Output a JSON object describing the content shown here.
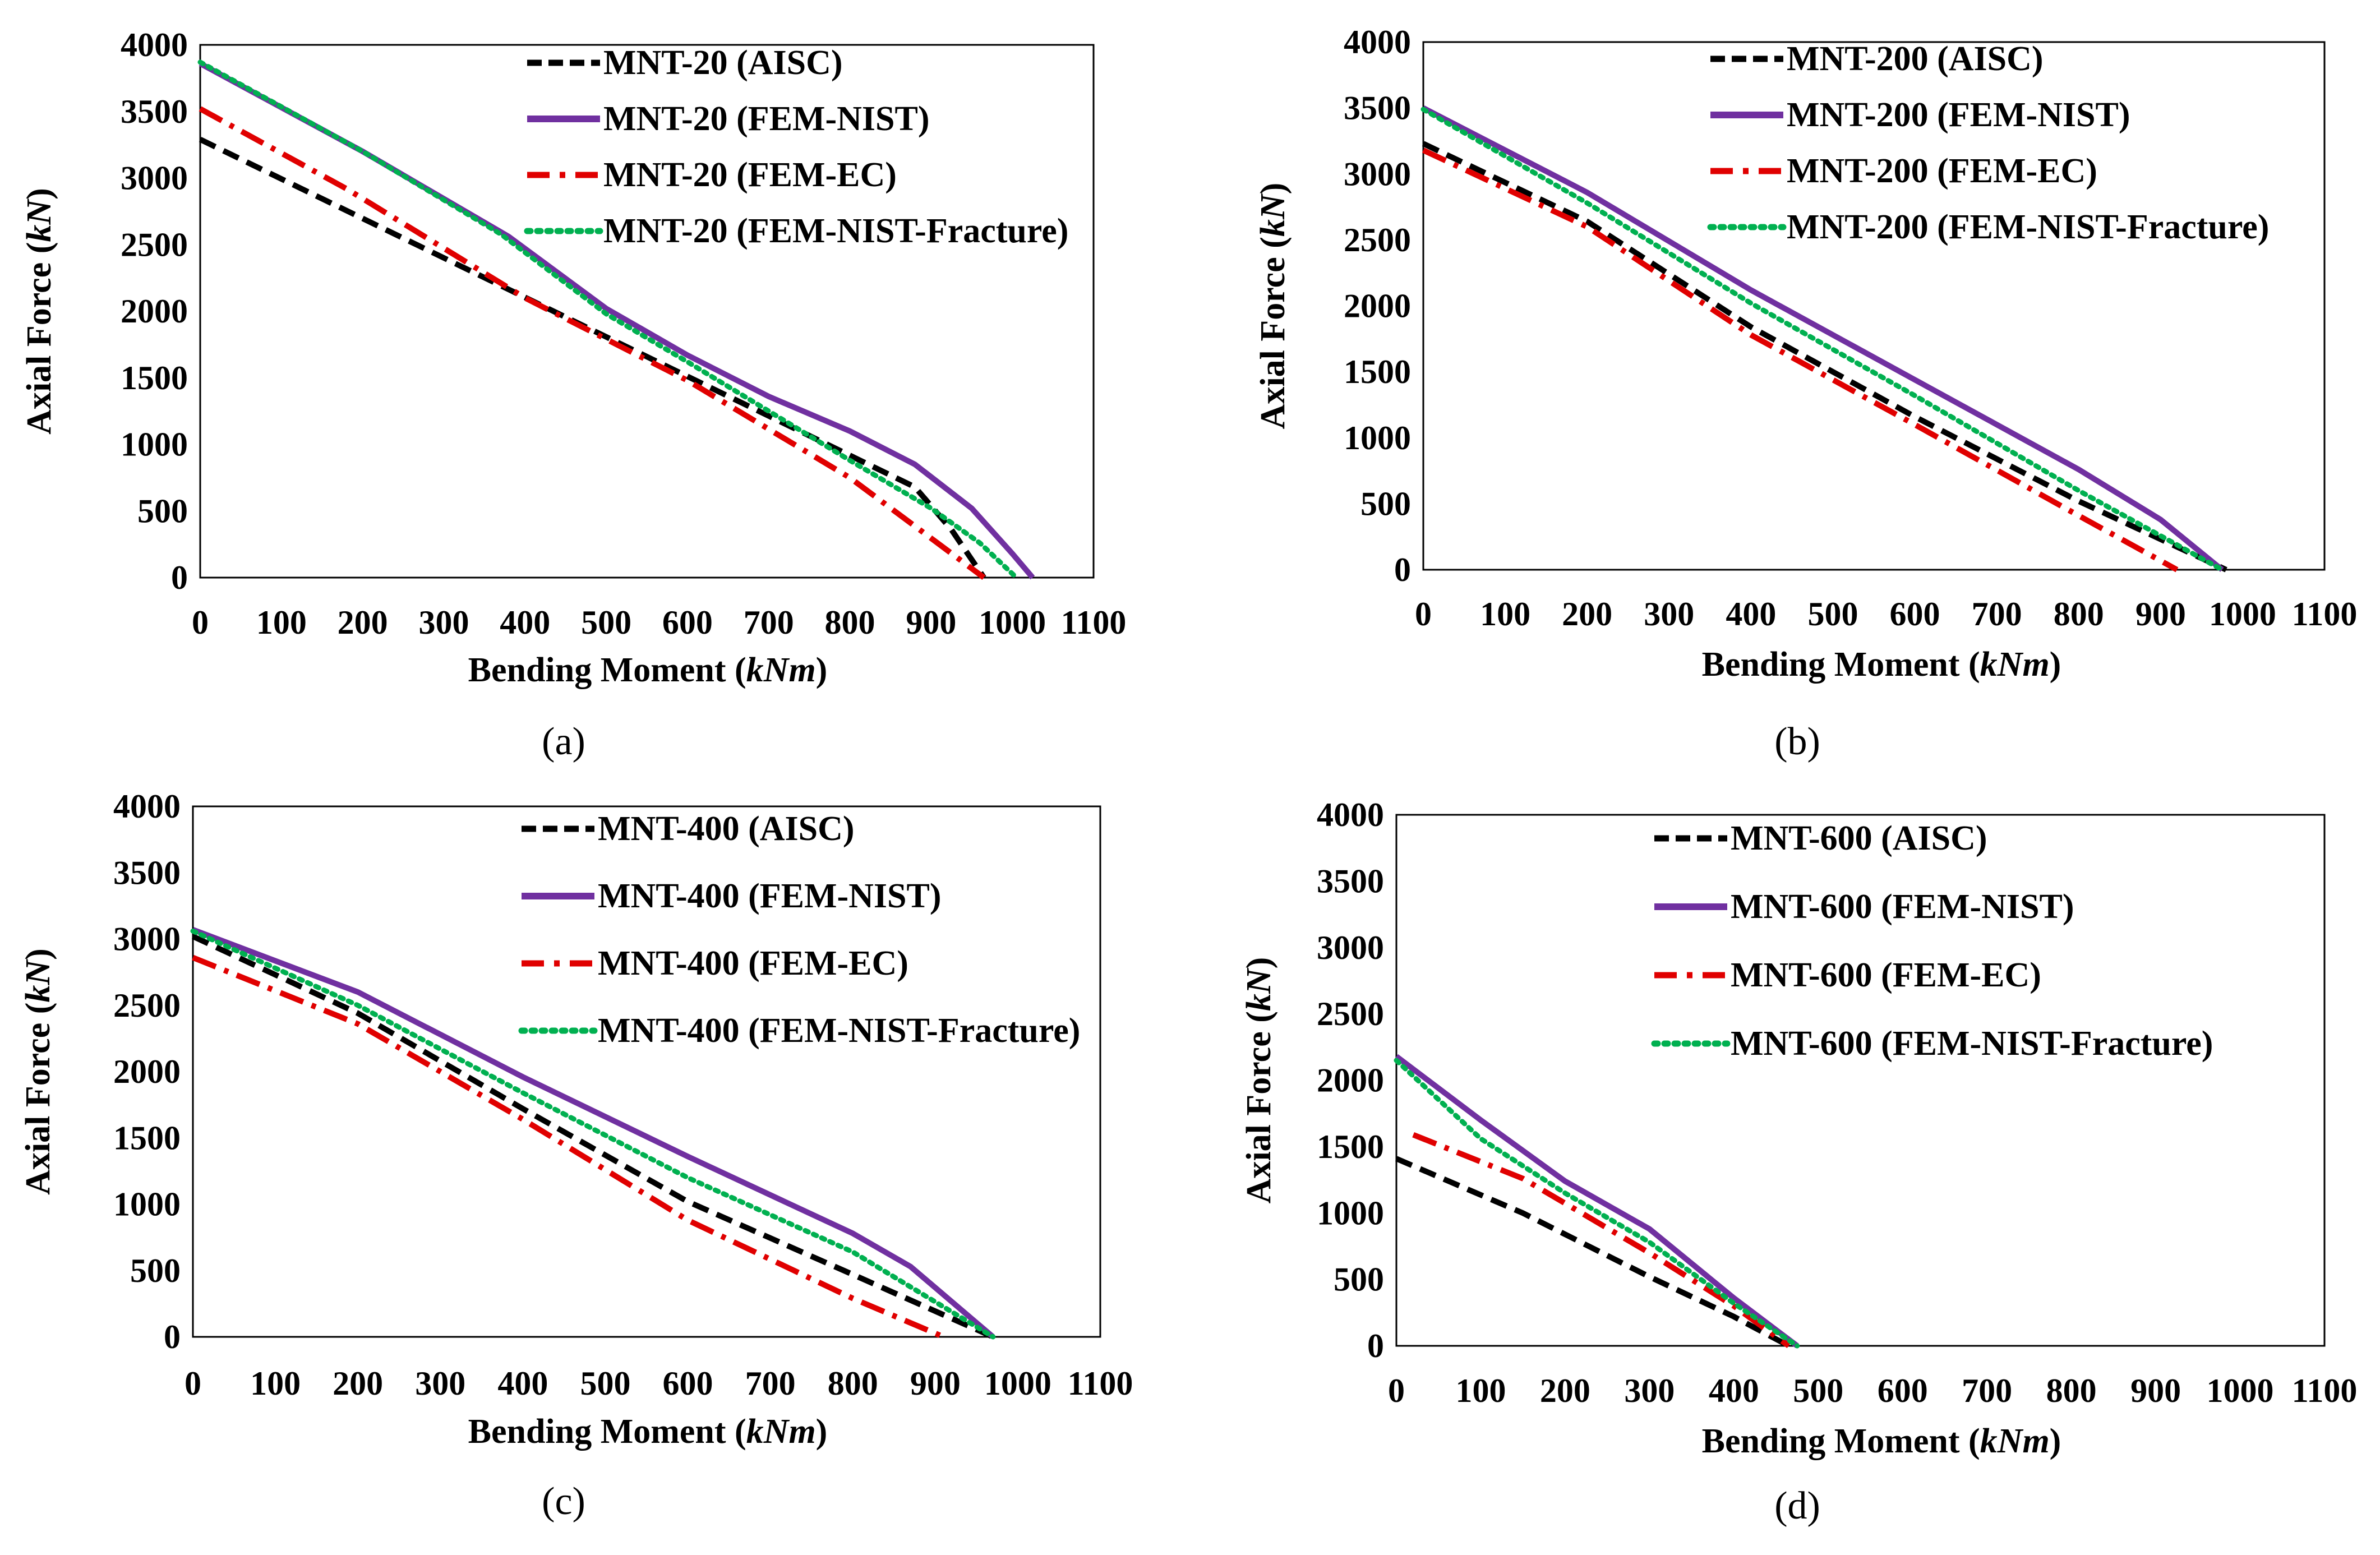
{
  "figure": {
    "style": {
      "colors": {
        "aisc": "#000000",
        "fem_nist": "#7030a0",
        "fem_ec": "#e00000",
        "fem_nist_fracture": "#00b050"
      },
      "dash": {
        "aisc": "30,16",
        "fem_nist": "",
        "fem_ec": "44,16,8,16",
        "fem_nist_fracture": "6,10"
      }
    }
  },
  "chart_data": [
    {
      "panel": "(a)",
      "type": "line",
      "xlabel": "Bending Moment (",
      "xlabel_unit": "kNm",
      "xlabel_close": ")",
      "ylabel": "Axial Force (",
      "ylabel_unit": "kN",
      "ylabel_close": ")",
      "xlim": [
        0,
        1100
      ],
      "ylim": [
        0,
        4000
      ],
      "xticks": [
        "0",
        "100",
        "200",
        "300",
        "400",
        "500",
        "600",
        "700",
        "800",
        "900",
        "1000",
        "1100"
      ],
      "yticks": [
        "0",
        "500",
        "1000",
        "1500",
        "2000",
        "2500",
        "3000",
        "3500",
        "4000"
      ],
      "series": [
        {
          "key": "aisc",
          "name": "MNT-20 (AISC)",
          "points": [
            [
              0,
              3290
            ],
            [
              880,
              680
            ],
            [
              925,
              360
            ],
            [
              965,
              0
            ]
          ]
        },
        {
          "key": "fem_nist",
          "name": "MNT-20 (FEM-NIST)",
          "points": [
            [
              0,
              3860
            ],
            [
              200,
              3200
            ],
            [
              380,
              2560
            ],
            [
              500,
              2020
            ],
            [
              600,
              1670
            ],
            [
              700,
              1360
            ],
            [
              800,
              1100
            ],
            [
              880,
              850
            ],
            [
              950,
              520
            ],
            [
              1000,
              180
            ],
            [
              1025,
              0
            ]
          ]
        },
        {
          "key": "fem_ec",
          "name": "MNT-20 (FEM-EC)",
          "points": [
            [
              0,
              3520
            ],
            [
              180,
              2920
            ],
            [
              400,
              2100
            ],
            [
              600,
              1480
            ],
            [
              800,
              750
            ],
            [
              965,
              0
            ]
          ]
        },
        {
          "key": "fem_nist_fracture",
          "name": "MNT-20 (FEM-NIST-Fracture)",
          "points": [
            [
              0,
              3870
            ],
            [
              200,
              3200
            ],
            [
              370,
              2580
            ],
            [
              500,
              1980
            ],
            [
              600,
              1620
            ],
            [
              700,
              1250
            ],
            [
              800,
              880
            ],
            [
              900,
              520
            ],
            [
              960,
              260
            ],
            [
              1005,
              0
            ]
          ]
        }
      ]
    },
    {
      "panel": "(b)",
      "type": "line",
      "xlabel": "Bending Moment (",
      "xlabel_unit": "kNm",
      "xlabel_close": ")",
      "ylabel": "Axial Force (",
      "ylabel_unit": "kN",
      "ylabel_close": ")",
      "xlim": [
        0,
        1100
      ],
      "ylim": [
        0,
        4000
      ],
      "xticks": [
        "0",
        "100",
        "200",
        "300",
        "400",
        "500",
        "600",
        "700",
        "800",
        "900",
        "1000",
        "1100"
      ],
      "yticks": [
        "0",
        "500",
        "1000",
        "1500",
        "2000",
        "2500",
        "3000",
        "3500",
        "4000"
      ],
      "series": [
        {
          "key": "aisc",
          "name": "MNT-200 (AISC)",
          "points": [
            [
              0,
              3230
            ],
            [
              200,
              2640
            ],
            [
              400,
              1840
            ],
            [
              600,
              1160
            ],
            [
              800,
              520
            ],
            [
              980,
              0
            ]
          ]
        },
        {
          "key": "fem_nist",
          "name": "MNT-200 (FEM-NIST)",
          "points": [
            [
              0,
              3500
            ],
            [
              200,
              2860
            ],
            [
              400,
              2120
            ],
            [
              600,
              1440
            ],
            [
              800,
              760
            ],
            [
              900,
              380
            ],
            [
              975,
              0
            ]
          ]
        },
        {
          "key": "fem_ec",
          "name": "MNT-200 (FEM-EC)",
          "points": [
            [
              0,
              3180
            ],
            [
              200,
              2600
            ],
            [
              400,
              1780
            ],
            [
              600,
              1100
            ],
            [
              800,
              410
            ],
            [
              920,
              0
            ]
          ]
        },
        {
          "key": "fem_nist_fracture",
          "name": "MNT-200 (FEM-NIST-Fracture)",
          "points": [
            [
              0,
              3490
            ],
            [
              200,
              2780
            ],
            [
              400,
              2020
            ],
            [
              600,
              1320
            ],
            [
              800,
              600
            ],
            [
              975,
              0
            ]
          ]
        }
      ]
    },
    {
      "panel": "(c)",
      "type": "line",
      "xlabel": "Bending Moment (",
      "xlabel_unit": "kNm",
      "xlabel_close": ")",
      "ylabel": "Axial Force (",
      "ylabel_unit": "kN",
      "ylabel_close": ")",
      "xlim": [
        0,
        1100
      ],
      "ylim": [
        0,
        4000
      ],
      "xticks": [
        "0",
        "100",
        "200",
        "300",
        "400",
        "500",
        "600",
        "700",
        "800",
        "900",
        "1000",
        "1100"
      ],
      "yticks": [
        "0",
        "500",
        "1000",
        "1500",
        "2000",
        "2500",
        "3000",
        "3500",
        "4000"
      ],
      "series": [
        {
          "key": "aisc",
          "name": "MNT-400 (AISC)",
          "points": [
            [
              0,
              3020
            ],
            [
              200,
              2440
            ],
            [
              400,
              1720
            ],
            [
              600,
              1020
            ],
            [
              800,
              470
            ],
            [
              970,
              0
            ]
          ]
        },
        {
          "key": "fem_nist",
          "name": "MNT-400 (FEM-NIST)",
          "points": [
            [
              0,
              3070
            ],
            [
              200,
              2600
            ],
            [
              400,
              1960
            ],
            [
              600,
              1360
            ],
            [
              800,
              780
            ],
            [
              870,
              530
            ],
            [
              970,
              0
            ]
          ]
        },
        {
          "key": "fem_ec",
          "name": "MNT-400 (FEM-EC)",
          "points": [
            [
              0,
              2860
            ],
            [
              200,
              2360
            ],
            [
              400,
              1640
            ],
            [
              600,
              880
            ],
            [
              800,
              290
            ],
            [
              910,
              0
            ]
          ]
        },
        {
          "key": "fem_nist_fracture",
          "name": "MNT-400 (FEM-NIST-Fracture)",
          "points": [
            [
              0,
              3060
            ],
            [
              200,
              2500
            ],
            [
              400,
              1840
            ],
            [
              600,
              1200
            ],
            [
              800,
              640
            ],
            [
              970,
              0
            ]
          ]
        }
      ]
    },
    {
      "panel": "(d)",
      "type": "line",
      "xlabel": "Bending Moment (",
      "xlabel_unit": "kNm",
      "xlabel_close": ")",
      "ylabel": "Axial Force (",
      "ylabel_unit": "kN",
      "ylabel_close": ")",
      "xlim": [
        0,
        1100
      ],
      "ylim": [
        0,
        4000
      ],
      "xticks": [
        "0",
        "100",
        "200",
        "300",
        "400",
        "500",
        "600",
        "700",
        "800",
        "900",
        "1000",
        "1100"
      ],
      "yticks": [
        "0",
        "500",
        "1000",
        "1500",
        "2000",
        "2500",
        "3000",
        "3500",
        "4000"
      ],
      "series": [
        {
          "key": "aisc",
          "name": "MNT-600 (AISC)",
          "points": [
            [
              0,
              1410
            ],
            [
              150,
              1000
            ],
            [
              300,
              520
            ],
            [
              400,
              220
            ],
            [
              465,
              0
            ]
          ]
        },
        {
          "key": "fem_nist",
          "name": "MNT-600 (FEM-NIST)",
          "points": [
            [
              0,
              2180
            ],
            [
              100,
              1700
            ],
            [
              200,
              1240
            ],
            [
              300,
              880
            ],
            [
              400,
              360
            ],
            [
              475,
              0
            ]
          ]
        },
        {
          "key": "fem_ec",
          "name": "MNT-600 (FEM-EC)",
          "points": [
            [
              20,
              1590
            ],
            [
              150,
              1260
            ],
            [
              300,
              700
            ],
            [
              400,
              300
            ],
            [
              465,
              0
            ]
          ]
        },
        {
          "key": "fem_nist_fracture",
          "name": "MNT-600 (FEM-NIST-Fracture)",
          "points": [
            [
              0,
              2150
            ],
            [
              100,
              1560
            ],
            [
              200,
              1150
            ],
            [
              300,
              780
            ],
            [
              400,
              320
            ],
            [
              475,
              0
            ]
          ]
        }
      ]
    }
  ]
}
